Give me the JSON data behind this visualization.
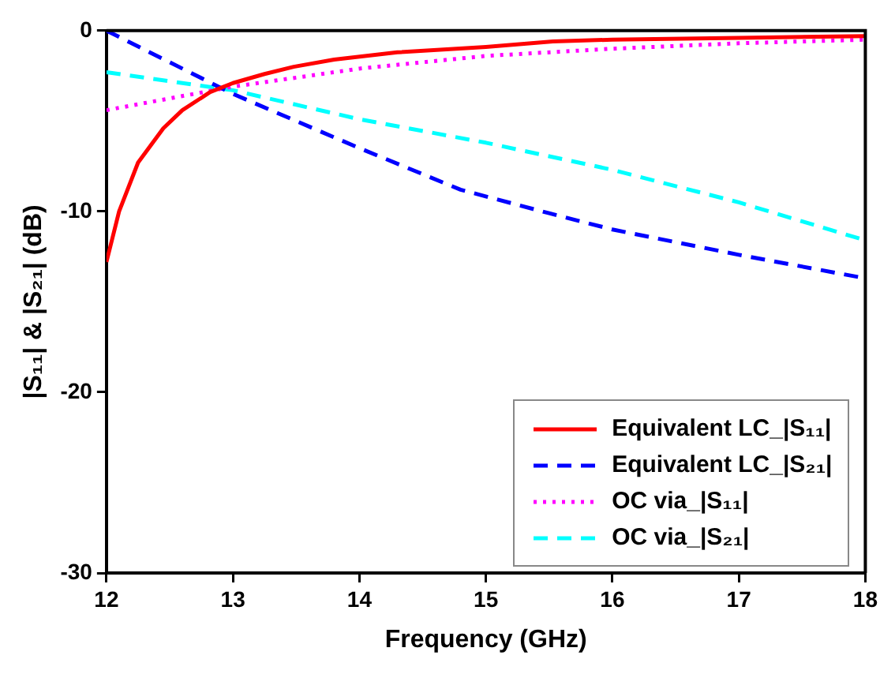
{
  "chart_data": {
    "type": "line",
    "xlabel": "Frequency (GHz)",
    "ylabel": "|S₁₁| & |S₂₁| (dB)",
    "xlim": [
      12,
      18
    ],
    "xticks": [
      12,
      13,
      14,
      15,
      16,
      17,
      18
    ],
    "ylim": [
      -30,
      0
    ],
    "yticks": [
      -30,
      -20,
      -10,
      0
    ],
    "grid": false,
    "legend": "bottom right",
    "marker": "none",
    "series": [
      {
        "name": "Equivalent LC_|S₁₁|",
        "color": "#ff0000",
        "line_style": "solid",
        "x": [
          12,
          12.1,
          12.25,
          12.45,
          12.6,
          12.82,
          13,
          13.25,
          13.48,
          13.8,
          14.3,
          15,
          15.53,
          16,
          17,
          18
        ],
        "values": [
          -12.8,
          -10.0,
          -7.3,
          -5.4,
          -4.4,
          -3.4,
          -2.9,
          -2.4,
          -2.0,
          -1.6,
          -1.2,
          -0.9,
          -0.6,
          -0.5,
          -0.4,
          -0.3
        ]
      },
      {
        "name": "Equivalent LC_|S₂₁|",
        "color": "#0000ff",
        "line_style": "dashed",
        "x": [
          12,
          13,
          14,
          14.8,
          15.5,
          16,
          17,
          18
        ],
        "values": [
          0,
          -3.5,
          -6.5,
          -8.8,
          -10.1,
          -11.0,
          -12.4,
          -13.7
        ]
      },
      {
        "name": "OC via_|S₁₁|",
        "color": "#ff00ff",
        "line_style": "dotted",
        "x": [
          12,
          13,
          13.5,
          14,
          15,
          16,
          17,
          18
        ],
        "values": [
          -4.4,
          -3.1,
          -2.6,
          -2.1,
          -1.4,
          -1.0,
          -0.7,
          -0.5
        ]
      },
      {
        "name": "OC via_|S₂₁|",
        "color": "#00ffff",
        "line_style": "dashed",
        "x": [
          12,
          13,
          14,
          15,
          16,
          17,
          18
        ],
        "values": [
          -2.3,
          -3.3,
          -4.9,
          -6.2,
          -7.7,
          -9.5,
          -11.6
        ]
      }
    ]
  }
}
